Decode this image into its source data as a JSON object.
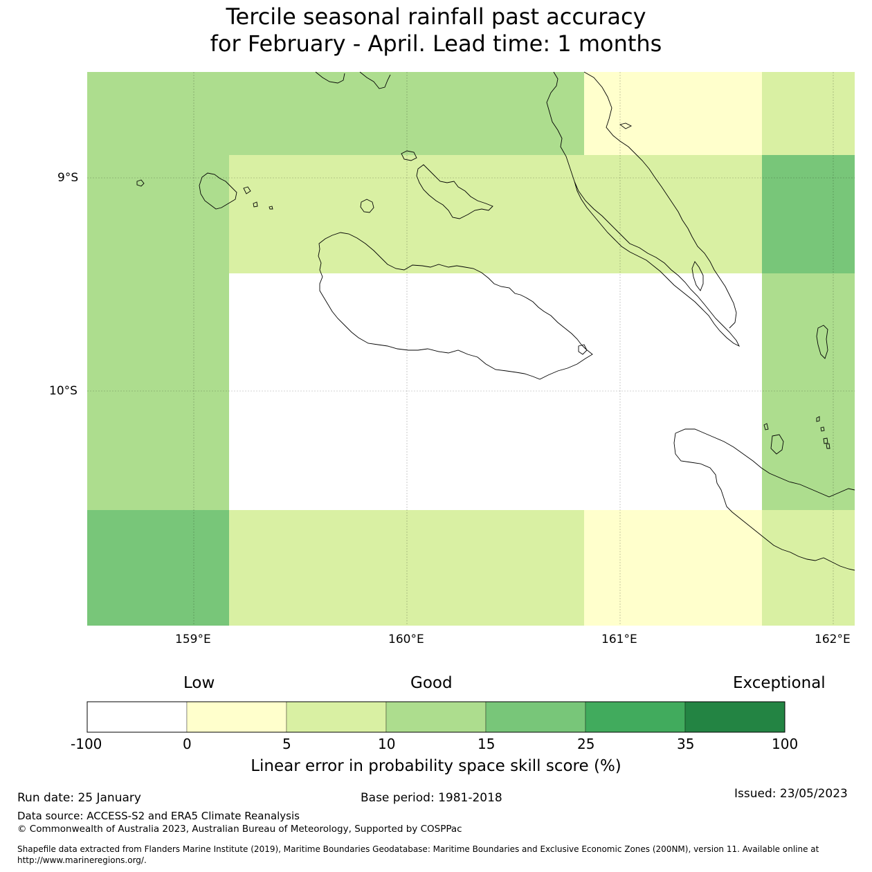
{
  "title": {
    "line1": "Tercile seasonal rainfall past accuracy",
    "line2": "for February - April. Lead time: 1 months"
  },
  "map": {
    "lat_labels": [
      "9°S",
      "10°S"
    ],
    "lon_labels": [
      "159°E",
      "160°E",
      "161°E",
      "162°E"
    ]
  },
  "colors": {
    "cat_lt0": "#ffffff",
    "cat_0_5": "#ffffcc",
    "cat_5_10": "#d9f0a3",
    "cat_10_15": "#addd8e",
    "cat_15_25": "#78c679",
    "cat_25_35": "#41ab5d",
    "cat_35_100": "#238443"
  },
  "colorbar": {
    "categories": {
      "low": "Low",
      "good": "Good",
      "exceptional": "Exceptional"
    },
    "ticks": [
      "-100",
      "0",
      "5",
      "10",
      "15",
      "25",
      "35",
      "100"
    ],
    "label": "Linear error in probability space skill score (%)"
  },
  "footer": {
    "run_date": "Run date: 25 January",
    "base_period": "Base period: 1981-2018",
    "issued": "Issued: 23/05/2023",
    "data_source": "Data source: ACCESS-S2 and ERA5 Climate Reanalysis",
    "copyright": "© Commonwealth of Australia 2023, Australian Bureau of Meteorology, Supported by COSPPac",
    "shapefile_line1": "Shapefile data extracted from Flanders Marine Institute (2019), Maritime Boundaries Geodatabase: Maritime Boundaries and Exclusive Economic Zones (200NM), version 11. Available online at",
    "shapefile_line2": "http://www.marineregions.org/."
  }
}
